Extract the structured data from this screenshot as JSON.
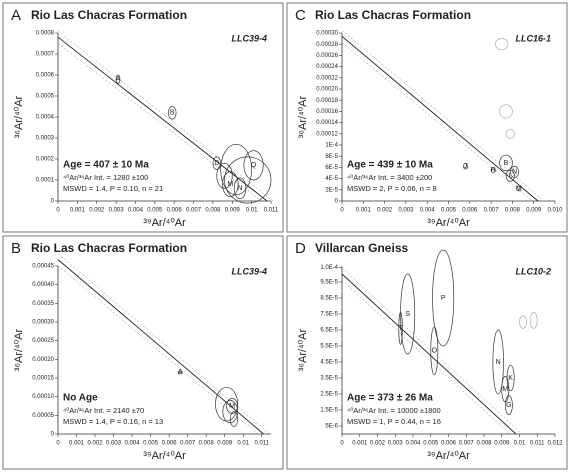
{
  "chart_data": [
    {
      "type": "isochron",
      "panel": "A",
      "title": "Rio Las Chacras Formation",
      "sample": "LLC39-4",
      "xlabel": "³⁹Ar/⁴⁰Ar",
      "ylabel": "³⁶Ar/⁴⁰Ar",
      "age": "Age = 407 ± 10 Ma",
      "intercept": "⁴⁰Ar/³⁶Ar Int. = 1280 ±100",
      "mswd": "MSWD = 1.4, P = 0.10, n = 21",
      "xlim": [
        0,
        0.011
      ],
      "ylim": [
        0,
        0.0008
      ],
      "xticks": [
        0,
        0.001,
        0.002,
        0.003,
        0.004,
        0.005,
        0.006,
        0.007,
        0.008,
        0.009,
        0.01,
        0.011
      ],
      "yticks": [
        0,
        0.0001,
        0.0002,
        0.0003,
        0.0004,
        0.0005,
        0.0006,
        0.0007,
        0.0008
      ],
      "isochron": {
        "y0": 0.00078,
        "x0": 0.0108
      },
      "x": [
        0.0031,
        0.0059,
        0.0082,
        0.0086,
        0.0092,
        0.0098,
        0.0101,
        0.0094,
        0.0089
      ],
      "y": [
        0.00058,
        0.00042,
        0.00018,
        0.00012,
        0.00015,
        0.0001,
        0.00017,
        6e-05,
        8e-05
      ],
      "x_err": [
        0.0001,
        0.0002,
        0.0002,
        0.0004,
        0.0008,
        0.0012,
        0.0005,
        0.0003,
        0.0004
      ],
      "y_err": [
        2e-05,
        3e-05,
        3e-05,
        6e-05,
        0.00012,
        0.00011,
        7e-05,
        5e-05,
        6e-05
      ],
      "labels": [
        "A",
        "B",
        "D",
        null,
        null,
        null,
        "Q",
        "N",
        "M"
      ],
      "colors": [
        "#333",
        "#333",
        "#333",
        "#333",
        "#333",
        "#333",
        "#333",
        "#333",
        "#333"
      ]
    },
    {
      "type": "isochron",
      "panel": "C",
      "title": "Rio Las Chacras Formation",
      "sample": "LLC16-1",
      "xlabel": "³⁹Ar/⁴⁰Ar",
      "ylabel": "³⁶Ar/⁴⁰Ar",
      "age": "Age = 439 ± 10 Ma",
      "intercept": "⁴⁰Ar/³⁶Ar Int. = 3400 ±200",
      "mswd": "MSWD = 2, P = 0.06, n = 8",
      "xlim": [
        0,
        0.01
      ],
      "ylim": [
        0,
        0.0003
      ],
      "xticks": [
        0,
        0.001,
        0.002,
        0.003,
        0.004,
        0.005,
        0.006,
        0.007,
        0.008,
        0.009,
        {
          "value": 0.01,
          "label": "0.010"
        }
      ],
      "yticks": [
        0,
        {
          "value": 2e-05,
          "label": "2E-5"
        },
        {
          "value": 4e-05,
          "label": "4E-5"
        },
        {
          "value": 6e-05,
          "label": "6E-5"
        },
        {
          "value": 8e-05,
          "label": "8E-5"
        },
        {
          "value": 0.0001,
          "label": "1E-4"
        },
        0.00012,
        0.00014,
        0.00016,
        0.00018,
        {
          "value": 0.0002,
          "label": "0.00020"
        },
        0.00022,
        0.00024,
        0.00026,
        0.00028,
        {
          "value": 0.0003,
          "label": "0.00030"
        }
      ],
      "isochron": {
        "y0": 0.000294,
        "x0": 0.0092
      },
      "x": [
        0.0058,
        0.0071,
        0.0077,
        0.0079,
        0.0081,
        0.0083,
        0.0075,
        0.0077,
        0.0079
      ],
      "y": [
        6.2e-05,
        5.5e-05,
        6.8e-05,
        4.5e-05,
        5.2e-05,
        2.2e-05,
        0.00028,
        0.00016,
        0.00012
      ],
      "x_err": [
        0.0001,
        0.0001,
        0.0003,
        0.0002,
        0.0002,
        0.0001,
        0.0003,
        0.0003,
        0.0002
      ],
      "y_err": [
        5e-06,
        4e-06,
        1.4e-05,
        1e-05,
        1e-05,
        4e-06,
        1e-05,
        1.2e-05,
        8e-06
      ],
      "labels": [
        "J",
        "R",
        "B",
        "L",
        "N",
        "M",
        null,
        null,
        null
      ],
      "colors": [
        "#333",
        "#333",
        "#333",
        "#333",
        "#333",
        "#333",
        "#aaa",
        "#aaa",
        "#aaa"
      ]
    },
    {
      "type": "isochron",
      "panel": "B",
      "title": "Rio Las Chacras Formation",
      "sample": "LLC39-4",
      "xlabel": "³⁹Ar/⁴⁰Ar",
      "ylabel": "³⁶Ar/⁴⁰Ar",
      "age": "No Age",
      "intercept": "⁴⁰Ar/³⁶Ar Int. = 2140 ±70",
      "mswd": "MSWD = 1.4, P = 0.16, n = 13",
      "xlim": [
        0,
        0.0115
      ],
      "ylim": [
        0,
        0.00045
      ],
      "xticks": [
        0,
        0.001,
        0.002,
        0.003,
        0.004,
        0.005,
        0.006,
        0.007,
        0.008,
        0.009,
        0.01,
        0.011
      ],
      "yticks": [
        0,
        5e-05,
        {
          "value": 0.0001,
          "label": "0.00010"
        },
        0.00015,
        {
          "value": 0.0002,
          "label": "0.00020"
        },
        0.00025,
        {
          "value": 0.0003,
          "label": "0.00030"
        },
        0.00035,
        {
          "value": 0.0004,
          "label": "0.00040"
        },
        0.00045
      ],
      "isochron": {
        "y0": 0.000467,
        "x0": 0.0111
      },
      "x": [
        0.0066,
        0.0091,
        0.0093,
        0.0094,
        0.0095
      ],
      "y": [
        0.000165,
        8e-05,
        6e-05,
        7.5e-05,
        4e-05
      ],
      "x_err": [
        0.0001,
        0.0006,
        0.0004,
        0.0003,
        0.0002
      ],
      "y_err": [
        4e-06,
        4.5e-05,
        3e-05,
        2e-05,
        2e-05
      ],
      "labels": [
        "A",
        null,
        null,
        "M",
        null
      ],
      "colors": [
        "#333",
        "#333",
        "#333",
        "#333",
        "#333"
      ]
    },
    {
      "type": "isochron",
      "panel": "D",
      "title": "Villarcan Gneiss",
      "sample": "LLC10-2",
      "xlabel": "³⁹Ar/⁴⁰Ar",
      "ylabel": "³⁶Ar/⁴⁰Ar",
      "age": "Age = 373 ± 26 Ma",
      "intercept": "⁴⁰Ar/³⁶Ar Int. = 10000 ±1800",
      "mswd": "MSWD = 1, P = 0.44, n = 16",
      "xlim": [
        0,
        0.012
      ],
      "ylim": [
        0,
        0.000105
      ],
      "xticks": [
        0,
        0.001,
        0.002,
        0.003,
        0.004,
        0.005,
        0.006,
        0.007,
        0.008,
        0.009,
        0.01,
        0.011,
        0.012
      ],
      "yticks": [
        {
          "value": 5e-06,
          "label": "5E-6"
        },
        {
          "value": 1.5e-05,
          "label": "1.5E-5"
        },
        {
          "value": 2.5e-05,
          "label": "2.5E-5"
        },
        {
          "value": 3.5e-05,
          "label": "3.5E-5"
        },
        {
          "value": 4.5e-05,
          "label": "4.5E-5"
        },
        {
          "value": 5.5e-05,
          "label": "5.5E-5"
        },
        {
          "value": 6.5e-05,
          "label": "6.5E-5"
        },
        {
          "value": 7.5e-05,
          "label": "7.5E-5"
        },
        {
          "value": 8.5e-05,
          "label": "8.5E-5"
        },
        {
          "value": 9.5e-05,
          "label": "9.5E-5"
        },
        {
          "value": 0.000104,
          "label": "1.0E-4"
        }
      ],
      "isochron": {
        "y0": 0.0001,
        "x0": 0.0098
      },
      "x": [
        0.0033,
        0.0037,
        0.0057,
        0.0052,
        0.0088,
        0.0092,
        0.0095,
        0.0094,
        0.0102,
        0.0108
      ],
      "y": [
        6.6e-05,
        7.5e-05,
        8.5e-05,
        5.2e-05,
        4.5e-05,
        2.8e-05,
        3.5e-05,
        1.8e-05,
        7e-05,
        7.1e-05
      ],
      "x_err": [
        0.0001,
        0.0004,
        0.0006,
        0.0002,
        0.0003,
        0.0002,
        0.0002,
        0.0002,
        0.0002,
        0.0002
      ],
      "y_err": [
        1e-05,
        2.5e-05,
        3e-05,
        1.5e-05,
        2e-05,
        8e-06,
        8e-06,
        6e-06,
        4e-06,
        5e-06
      ],
      "labels": [
        "T",
        "S",
        "P",
        "O",
        "N",
        "M",
        "K",
        "G",
        null,
        null
      ],
      "colors": [
        "#333",
        "#333",
        "#333",
        "#333",
        "#333",
        "#333",
        "#333",
        "#333",
        "#aaa",
        "#aaa"
      ]
    }
  ]
}
